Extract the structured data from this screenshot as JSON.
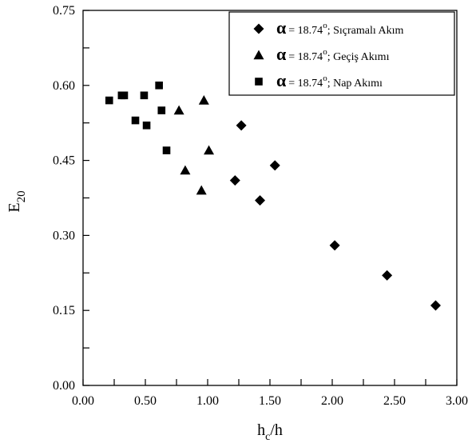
{
  "chart_data": {
    "type": "scatter",
    "xlabel": {
      "main": "h",
      "sub": "c",
      "tail": "/h"
    },
    "ylabel": {
      "main": "E",
      "sub": "20"
    },
    "xlim": [
      0,
      3
    ],
    "ylim": [
      0,
      0.75
    ],
    "x_ticks": [
      "0.00",
      "0.50",
      "1.00",
      "1.50",
      "2.00",
      "2.50",
      "3.00"
    ],
    "x_tick_values": [
      0,
      0.5,
      1,
      1.5,
      2,
      2.5,
      3
    ],
    "y_ticks": [
      "0.00",
      "0.15",
      "0.30",
      "0.45",
      "0.60",
      "0.75"
    ],
    "y_tick_values": [
      0,
      0.15,
      0.3,
      0.45,
      0.6,
      0.75
    ],
    "legend_position": "top-right",
    "series": [
      {
        "alpha_symbol": "α",
        "value_text": "= 18.74",
        "degree": "o",
        "name": "; Sıçramalı Akım",
        "marker": "diamond",
        "points": [
          [
            1.27,
            0.52
          ],
          [
            1.22,
            0.41
          ],
          [
            1.42,
            0.37
          ],
          [
            1.54,
            0.44
          ],
          [
            2.02,
            0.28
          ],
          [
            2.44,
            0.22
          ],
          [
            2.83,
            0.16
          ]
        ]
      },
      {
        "alpha_symbol": "α",
        "value_text": "= 18.74",
        "degree": "o",
        "name": "; Geçiş Akımı",
        "marker": "triangle",
        "points": [
          [
            0.77,
            0.55
          ],
          [
            0.97,
            0.57
          ],
          [
            0.82,
            0.43
          ],
          [
            1.01,
            0.47
          ],
          [
            0.95,
            0.39
          ]
        ]
      },
      {
        "alpha_symbol": "α",
        "value_text": "= 18.74",
        "degree": "o",
        "name": "; Nap Akımı",
        "marker": "square",
        "points": [
          [
            0.21,
            0.57
          ],
          [
            0.31,
            0.58
          ],
          [
            0.33,
            0.58
          ],
          [
            0.49,
            0.58
          ],
          [
            0.61,
            0.6
          ],
          [
            0.63,
            0.55
          ],
          [
            0.42,
            0.53
          ],
          [
            0.51,
            0.52
          ],
          [
            0.67,
            0.47
          ]
        ]
      }
    ]
  }
}
